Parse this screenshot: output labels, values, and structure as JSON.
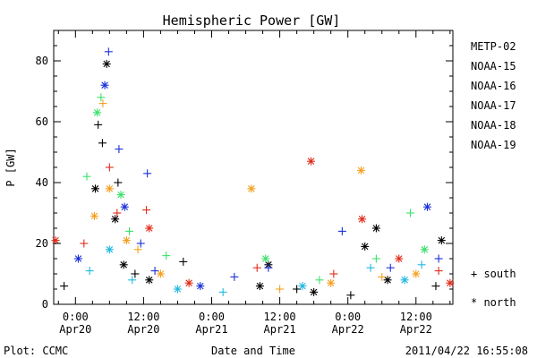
{
  "chart_data": {
    "type": "scatter",
    "title": "Hemispheric Power [GW]",
    "xlabel": "Date and Time",
    "ylabel": "P [GW]",
    "ylim": [
      0,
      90
    ],
    "xlim": [
      "2011-04-19T20:10",
      "2011-04-22T18:30"
    ],
    "yticks": [
      "0",
      "20",
      "40",
      "60",
      "80"
    ],
    "xticks": [
      {
        "line1": "0:00",
        "line2": "Apr20",
        "x": "2011-04-20T00:00"
      },
      {
        "line1": "12:00",
        "line2": "Apr20",
        "x": "2011-04-20T12:00"
      },
      {
        "line1": "0:00",
        "line2": "Apr21",
        "x": "2011-04-21T00:00"
      },
      {
        "line1": "12:00",
        "line2": "Apr21",
        "x": "2011-04-21T12:00"
      },
      {
        "line1": "0:00",
        "line2": "Apr22",
        "x": "2011-04-22T00:00"
      },
      {
        "line1": "12:00",
        "line2": "Apr22",
        "x": "2011-04-22T12:00"
      }
    ],
    "markers_legend": [
      {
        "symbol": "+",
        "label": "south"
      },
      {
        "symbol": "*",
        "label": "north"
      }
    ],
    "series": [
      {
        "name": "METP-02",
        "color": "#000000",
        "points": [
          {
            "x": "2011-04-19T22:00",
            "y": 6,
            "m": "+"
          },
          {
            "x": "2011-04-20T03:30",
            "y": 38,
            "m": "*"
          },
          {
            "x": "2011-04-20T04:00",
            "y": 59,
            "m": "+"
          },
          {
            "x": "2011-04-20T04:45",
            "y": 53,
            "m": "+"
          },
          {
            "x": "2011-04-20T05:30",
            "y": 79,
            "m": "*"
          },
          {
            "x": "2011-04-20T07:00",
            "y": 28,
            "m": "*"
          },
          {
            "x": "2011-04-20T07:30",
            "y": 40,
            "m": "+"
          },
          {
            "x": "2011-04-20T08:30",
            "y": 13,
            "m": "*"
          },
          {
            "x": "2011-04-20T10:30",
            "y": 10,
            "m": "+"
          },
          {
            "x": "2011-04-20T13:00",
            "y": 8,
            "m": "*"
          },
          {
            "x": "2011-04-20T19:00",
            "y": 14,
            "m": "+"
          },
          {
            "x": "2011-04-21T08:30",
            "y": 6,
            "m": "*"
          },
          {
            "x": "2011-04-21T10:00",
            "y": 13,
            "m": "*"
          },
          {
            "x": "2011-04-21T15:00",
            "y": 5,
            "m": "+"
          },
          {
            "x": "2011-04-21T18:00",
            "y": 4,
            "m": "*"
          },
          {
            "x": "2011-04-22T00:30",
            "y": 3,
            "m": "+"
          },
          {
            "x": "2011-04-22T03:00",
            "y": 19,
            "m": "*"
          },
          {
            "x": "2011-04-22T05:00",
            "y": 25,
            "m": "*"
          },
          {
            "x": "2011-04-22T07:00",
            "y": 8,
            "m": "*"
          },
          {
            "x": "2011-04-22T15:30",
            "y": 6,
            "m": "+"
          },
          {
            "x": "2011-04-22T16:30",
            "y": 21,
            "m": "*"
          }
        ]
      },
      {
        "name": "NOAA-15",
        "color": "#1a30d8",
        "points": [
          {
            "x": "2011-04-20T00:30",
            "y": 15,
            "m": "*"
          },
          {
            "x": "2011-04-20T05:10",
            "y": 72,
            "m": "*"
          },
          {
            "x": "2011-04-20T05:50",
            "y": 83,
            "m": "+"
          },
          {
            "x": "2011-04-20T07:40",
            "y": 51,
            "m": "+"
          },
          {
            "x": "2011-04-20T08:40",
            "y": 32,
            "m": "*"
          },
          {
            "x": "2011-04-20T11:30",
            "y": 20,
            "m": "+"
          },
          {
            "x": "2011-04-20T12:40",
            "y": 43,
            "m": "+"
          },
          {
            "x": "2011-04-20T14:00",
            "y": 11,
            "m": "+"
          },
          {
            "x": "2011-04-20T22:00",
            "y": 6,
            "m": "*"
          },
          {
            "x": "2011-04-21T04:00",
            "y": 9,
            "m": "+"
          },
          {
            "x": "2011-04-21T10:00",
            "y": 12,
            "m": "+"
          },
          {
            "x": "2011-04-21T23:00",
            "y": 24,
            "m": "+"
          },
          {
            "x": "2011-04-22T07:30",
            "y": 12,
            "m": "+"
          },
          {
            "x": "2011-04-22T14:00",
            "y": 32,
            "m": "*"
          },
          {
            "x": "2011-04-22T16:00",
            "y": 15,
            "m": "+"
          }
        ]
      },
      {
        "name": "NOAA-16",
        "color": "#21b8e0",
        "points": [
          {
            "x": "2011-04-20T02:30",
            "y": 11,
            "m": "+"
          },
          {
            "x": "2011-04-20T06:00",
            "y": 18,
            "m": "*"
          },
          {
            "x": "2011-04-20T10:00",
            "y": 8,
            "m": "+"
          },
          {
            "x": "2011-04-20T18:00",
            "y": 5,
            "m": "*"
          },
          {
            "x": "2011-04-21T02:00",
            "y": 4,
            "m": "+"
          },
          {
            "x": "2011-04-21T16:00",
            "y": 6,
            "m": "*"
          },
          {
            "x": "2011-04-22T04:00",
            "y": 12,
            "m": "+"
          },
          {
            "x": "2011-04-22T10:00",
            "y": 8,
            "m": "*"
          },
          {
            "x": "2011-04-22T13:00",
            "y": 13,
            "m": "+"
          }
        ]
      },
      {
        "name": "NOAA-17",
        "color": "#3ce06c",
        "points": [
          {
            "x": "2011-04-20T02:00",
            "y": 42,
            "m": "+"
          },
          {
            "x": "2011-04-20T03:50",
            "y": 63,
            "m": "*"
          },
          {
            "x": "2011-04-20T04:30",
            "y": 68,
            "m": "+"
          },
          {
            "x": "2011-04-20T08:00",
            "y": 36,
            "m": "*"
          },
          {
            "x": "2011-04-20T09:30",
            "y": 24,
            "m": "+"
          },
          {
            "x": "2011-04-20T16:00",
            "y": 16,
            "m": "+"
          },
          {
            "x": "2011-04-21T09:30",
            "y": 15,
            "m": "*"
          },
          {
            "x": "2011-04-21T19:00",
            "y": 8,
            "m": "+"
          },
          {
            "x": "2011-04-22T05:00",
            "y": 15,
            "m": "+"
          },
          {
            "x": "2011-04-22T11:00",
            "y": 30,
            "m": "+"
          },
          {
            "x": "2011-04-22T13:30",
            "y": 18,
            "m": "*"
          }
        ]
      },
      {
        "name": "NOAA-18",
        "color": "#f4a020",
        "points": [
          {
            "x": "2011-04-20T03:20",
            "y": 29,
            "m": "*"
          },
          {
            "x": "2011-04-20T04:50",
            "y": 66,
            "m": "+"
          },
          {
            "x": "2011-04-20T06:00",
            "y": 38,
            "m": "*"
          },
          {
            "x": "2011-04-20T09:00",
            "y": 21,
            "m": "*"
          },
          {
            "x": "2011-04-20T11:00",
            "y": 18,
            "m": "+"
          },
          {
            "x": "2011-04-20T15:00",
            "y": 10,
            "m": "*"
          },
          {
            "x": "2011-04-21T07:00",
            "y": 38,
            "m": "*"
          },
          {
            "x": "2011-04-21T12:00",
            "y": 5,
            "m": "+"
          },
          {
            "x": "2011-04-21T21:00",
            "y": 7,
            "m": "*"
          },
          {
            "x": "2011-04-22T02:20",
            "y": 44,
            "m": "*"
          },
          {
            "x": "2011-04-22T06:00",
            "y": 9,
            "m": "+"
          },
          {
            "x": "2011-04-22T12:00",
            "y": 10,
            "m": "*"
          }
        ]
      },
      {
        "name": "NOAA-19",
        "color": "#e02a18",
        "points": [
          {
            "x": "2011-04-19T20:30",
            "y": 21,
            "m": "*"
          },
          {
            "x": "2011-04-20T01:30",
            "y": 20,
            "m": "+"
          },
          {
            "x": "2011-04-20T06:00",
            "y": 45,
            "m": "+"
          },
          {
            "x": "2011-04-20T07:20",
            "y": 30,
            "m": "+"
          },
          {
            "x": "2011-04-20T12:30",
            "y": 31,
            "m": "+"
          },
          {
            "x": "2011-04-20T13:00",
            "y": 25,
            "m": "*"
          },
          {
            "x": "2011-04-20T20:00",
            "y": 7,
            "m": "*"
          },
          {
            "x": "2011-04-21T08:00",
            "y": 12,
            "m": "+"
          },
          {
            "x": "2011-04-21T17:30",
            "y": 47,
            "m": "*"
          },
          {
            "x": "2011-04-21T21:30",
            "y": 10,
            "m": "+"
          },
          {
            "x": "2011-04-22T02:30",
            "y": 28,
            "m": "*"
          },
          {
            "x": "2011-04-22T09:00",
            "y": 15,
            "m": "*"
          },
          {
            "x": "2011-04-22T16:00",
            "y": 11,
            "m": "+"
          },
          {
            "x": "2011-04-22T18:00",
            "y": 7,
            "m": "*"
          }
        ]
      }
    ]
  },
  "footer": {
    "left": "Plot: CCMC",
    "right": "2011/04/22 16:55:08"
  }
}
